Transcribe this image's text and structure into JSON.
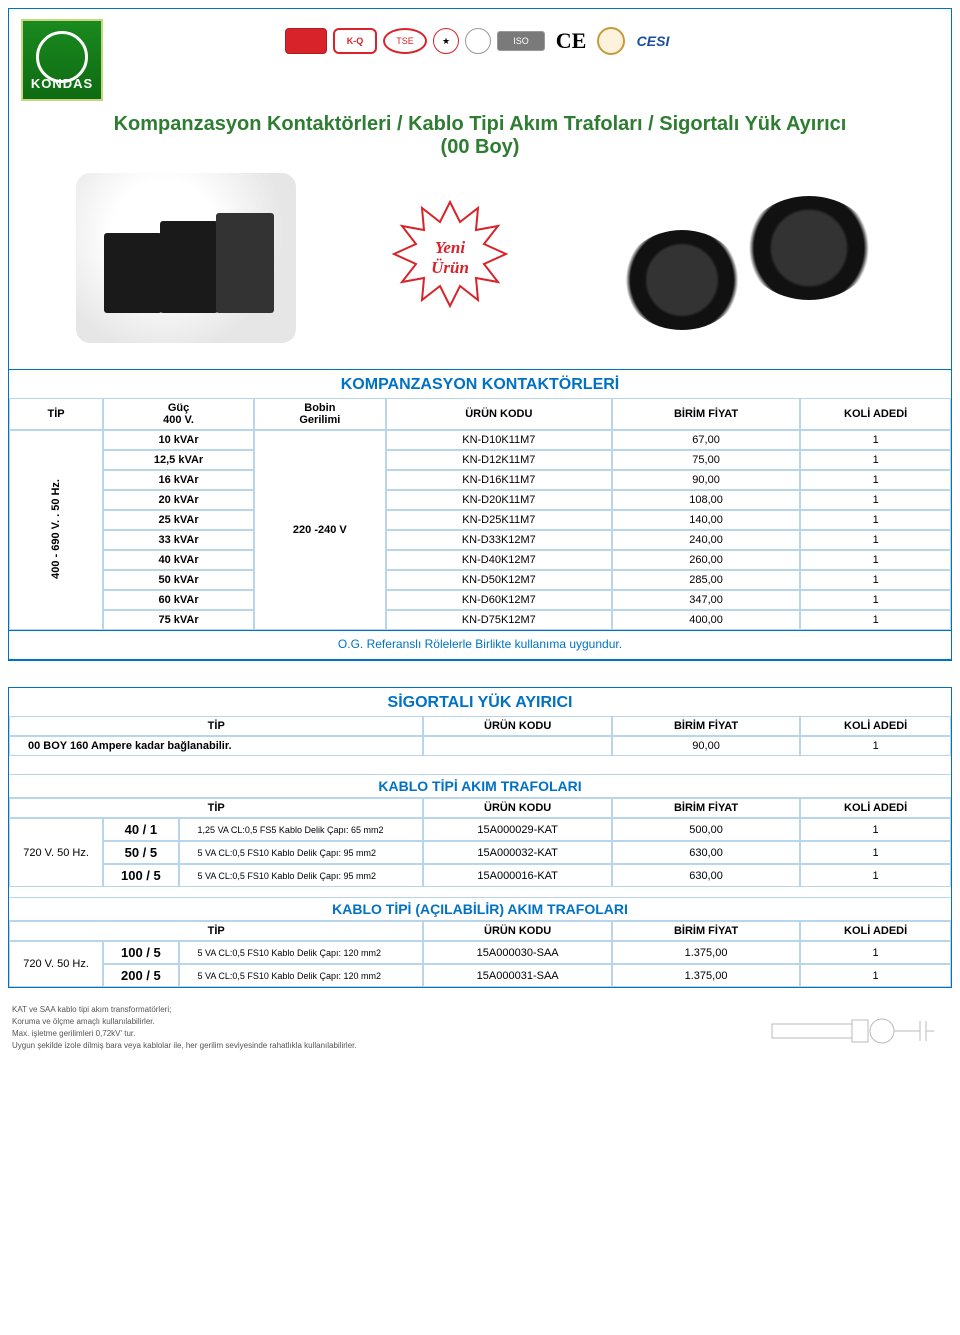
{
  "brand": "KONDAS",
  "title_line1": "Kompanzasyon Kontaktörleri   /  Kablo Tipi Akım Trafoları / Sigortalı Yük Ayırıcı",
  "title_line2": "(00 Boy)",
  "star": {
    "line1": "Yeni",
    "line2": "Ürün",
    "stroke": "#d8232a"
  },
  "colors": {
    "accent_blue": "#0072c6",
    "accent_green": "#2e7d32",
    "cell_border": "#b9d5ea"
  },
  "fonts": {
    "title_size_pt": 20,
    "section_title_pt": 16,
    "body_pt": 11,
    "footnote_pt": 8
  },
  "contactors": {
    "section_title": "KOMPANZASYON KONTAKTÖRLERİ",
    "headers": {
      "tip": "TİP",
      "power": "Güç\n400 V.",
      "coil": "Bobin\nGerilimi",
      "code": "ÜRÜN KODU",
      "unit_price": "BİRİM FİYAT",
      "box_qty": "KOLİ ADEDİ"
    },
    "tip_rowlabel": "400 - 690 V. . 50 Hz.",
    "coil_value": "220 -240 V",
    "rows": [
      {
        "power": "10 kVAr",
        "code": "KN-D10K11M7",
        "price": "67,00",
        "qty": "1"
      },
      {
        "power": "12,5 kVAr",
        "code": "KN-D12K11M7",
        "price": "75,00",
        "qty": "1"
      },
      {
        "power": "16 kVAr",
        "code": "KN-D16K11M7",
        "price": "90,00",
        "qty": "1"
      },
      {
        "power": "20 kVAr",
        "code": "KN-D20K11M7",
        "price": "108,00",
        "qty": "1"
      },
      {
        "power": "25 kVAr",
        "code": "KN-D25K11M7",
        "price": "140,00",
        "qty": "1"
      },
      {
        "power": "33 kVAr",
        "code": "KN-D33K12M7",
        "price": "240,00",
        "qty": "1"
      },
      {
        "power": "40 kVAr",
        "code": "KN-D40K12M7",
        "price": "260,00",
        "qty": "1"
      },
      {
        "power": "50 kVAr",
        "code": "KN-D50K12M7",
        "price": "285,00",
        "qty": "1"
      },
      {
        "power": "60 kVAr",
        "code": "KN-D60K12M7",
        "price": "347,00",
        "qty": "1"
      },
      {
        "power": "75 kVAr",
        "code": "KN-D75K12M7",
        "price": "400,00",
        "qty": "1"
      }
    ],
    "note": "O.G. Referanslı Rölelerle Birlikte kullanıma uygundur."
  },
  "switch": {
    "section_title": "SİGORTALI YÜK AYIRICI",
    "headers": {
      "tip": "TİP",
      "code": "ÜRÜN KODU",
      "unit_price": "BİRİM FİYAT",
      "box_qty": "KOLİ ADEDİ"
    },
    "row": {
      "tip": "00 BOY 160 Ampere kadar bağlanabilir.",
      "price": "90,00",
      "qty": "1"
    }
  },
  "cable_ct": {
    "section_title": "KABLO TİPİ  AKIM TRAFOLARI",
    "headers": {
      "tip": "TİP",
      "code": "ÜRÜN KODU",
      "unit_price": "BİRİM FİYAT",
      "box_qty": "KOLİ ADEDİ"
    },
    "voltage_label": "720 V. 50 Hz.",
    "rows": [
      {
        "ratio": "40 / 1",
        "spec": "1,25 VA  CL:0,5 FS5 Kablo Delik Çapı: 65 mm2",
        "code": "15A000029-KAT",
        "price": "500,00",
        "qty": "1"
      },
      {
        "ratio": "50 / 5",
        "spec": "5 VA  CL:0,5 FS10 Kablo Delik Çapı: 95 mm2",
        "code": "15A000032-KAT",
        "price": "630,00",
        "qty": "1"
      },
      {
        "ratio": "100 / 5",
        "spec": "5 VA  CL:0,5 FS10 Kablo Delik Çapı: 95 mm2",
        "code": "15A000016-KAT",
        "price": "630,00",
        "qty": "1"
      }
    ]
  },
  "cable_ct_open": {
    "section_title": "KABLO TİPİ (AÇILABİLİR) AKIM TRAFOLARI",
    "headers": {
      "tip": "TİP",
      "code": "ÜRÜN KODU",
      "unit_price": "BİRİM FİYAT",
      "box_qty": "KOLİ ADEDİ"
    },
    "voltage_label": "720 V. 50 Hz.",
    "rows": [
      {
        "ratio": "100 / 5",
        "spec": "5 VA  CL:0,5 FS10 Kablo Delik Çapı: 120 mm2",
        "code": "15A000030-SAA",
        "price": "1.375,00",
        "qty": "1"
      },
      {
        "ratio": "200 / 5",
        "spec": "5 VA  CL:0,5 FS10 Kablo Delik Çapı: 120 mm2",
        "code": "15A000031-SAA",
        "price": "1.375,00",
        "qty": "1"
      }
    ]
  },
  "footnotes": [
    "KAT ve SAA kablo tipi akım transformatörleri;",
    "Koruma ve ölçme amaçlı kullanılabilirler.",
    "Max. işletme gerilimleri 0,72kV' tur.",
    "Uygun şekilde izole dilmiş bara veya kablolar ile, her gerilim seviyesinde rahatlıkla kullanılabilirler."
  ]
}
